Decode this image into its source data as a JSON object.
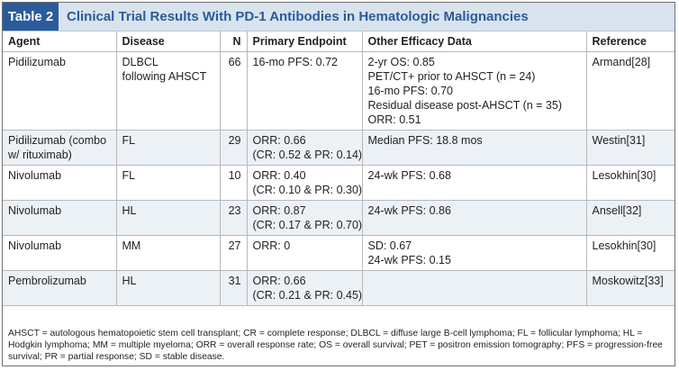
{
  "table": {
    "tag": "Table 2",
    "title": "Clinical Trial Results With PD-1 Antibodies in Hematologic Malignancies",
    "columns": [
      "Agent",
      "Disease",
      "N",
      "Primary Endpoint",
      "Other Efficacy Data",
      "Reference"
    ],
    "rows": [
      {
        "agent": [
          "Pidilizumab"
        ],
        "disease": [
          "DLBCL",
          "following AHSCT"
        ],
        "n": "66",
        "primary": [
          "16-mo PFS: 0.72"
        ],
        "other": [
          "2-yr OS: 0.85",
          "PET/CT+ prior to AHSCT (n = 24)",
          "16-mo PFS: 0.70",
          "Residual disease post-AHSCT (n = 35)",
          "ORR: 0.51"
        ],
        "reference": "Armand[28]"
      },
      {
        "agent": [
          "Pidilizumab (combo",
          "w/ rituximab)"
        ],
        "disease": [
          "FL"
        ],
        "n": "29",
        "primary": [
          "ORR: 0.66",
          "(CR: 0.52 & PR: 0.14)"
        ],
        "other": [
          "Median PFS: 18.8 mos"
        ],
        "reference": "Westin[31]"
      },
      {
        "agent": [
          "Nivolumab"
        ],
        "disease": [
          "FL"
        ],
        "n": "10",
        "primary": [
          "ORR: 0.40",
          "(CR: 0.10 & PR: 0.30)"
        ],
        "other": [
          "24-wk PFS: 0.68"
        ],
        "reference": "Lesokhin[30]"
      },
      {
        "agent": [
          "Nivolumab"
        ],
        "disease": [
          "HL"
        ],
        "n": "23",
        "primary": [
          "ORR: 0.87",
          "(CR: 0.17 & PR: 0.70)"
        ],
        "other": [
          "24-wk PFS: 0.86"
        ],
        "reference": "Ansell[32]"
      },
      {
        "agent": [
          "Nivolumab"
        ],
        "disease": [
          "MM"
        ],
        "n": "27",
        "primary": [
          "ORR: 0"
        ],
        "other": [
          "SD: 0.67",
          "24-wk PFS: 0.15"
        ],
        "reference": "Lesokhin[30]"
      },
      {
        "agent": [
          "Pembrolizumab"
        ],
        "disease": [
          "HL"
        ],
        "n": "31",
        "primary": [
          "ORR: 0.66",
          "(CR: 0.21 & PR: 0.45)"
        ],
        "other": [],
        "reference": "Moskowitz[33]"
      }
    ],
    "footnote": "AHSCT = autologous hematopoietic stem cell transplant; CR = complete response; DLBCL = diffuse large B-cell lymphoma; FL = follicular lymphoma; HL = Hodgkin lymphoma; MM = multiple myeloma; ORR = overall response rate; OS = overall survival; PET = positron emission tomography; PFS = progression-free survival; PR = partial response; SD = stable disease.",
    "colors": {
      "accent": "#2a5b9b",
      "title_bg": "#d8e3ee",
      "row_alt": "#ecf1f6"
    }
  }
}
